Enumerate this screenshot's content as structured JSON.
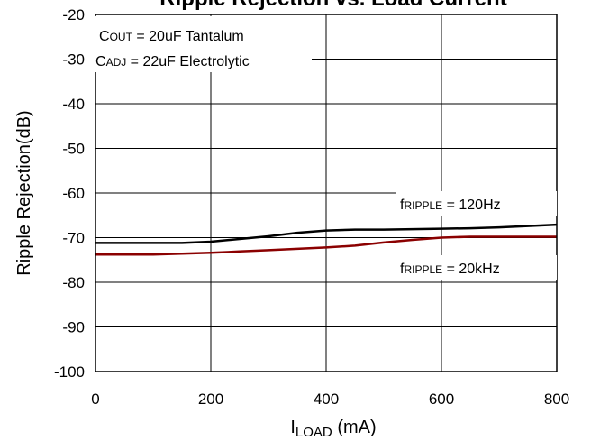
{
  "chart_data": {
    "type": "line",
    "title": "Ripple Rejection vs. Load Current",
    "xlabel": {
      "main": "I",
      "sub": "LOAD",
      "rest": " (mA)"
    },
    "ylabel": "Ripple Rejection(dB)",
    "xlim": [
      0,
      800
    ],
    "ylim": [
      -100,
      -20
    ],
    "x_ticks": [
      0,
      200,
      400,
      600,
      800
    ],
    "y_ticks": [
      -20,
      -30,
      -40,
      -50,
      -60,
      -70,
      -80,
      -90,
      -100
    ],
    "x_tick_labels": [
      "0",
      "200",
      "400",
      "600",
      "800"
    ],
    "y_tick_labels": [
      "-20",
      "-30",
      "-40",
      "-50",
      "-60",
      "-70",
      "-80",
      "-90",
      "-100"
    ],
    "grid": true,
    "conditions": [
      {
        "main": "C",
        "sub": "OUT",
        "rest": " = 20uF Tantalum"
      },
      {
        "main": "C",
        "sub": "ADJ",
        "rest": " = 22uF Electrolytic"
      }
    ],
    "series": [
      {
        "label": {
          "main": "f",
          "sub": "RIPPLE",
          "rest": " = 120Hz"
        },
        "color": "#000000",
        "x": [
          0,
          50,
          100,
          150,
          200,
          250,
          300,
          350,
          400,
          450,
          500,
          550,
          600,
          650,
          700,
          750,
          800
        ],
        "y": [
          -71.2,
          -71.2,
          -71.2,
          -71.2,
          -70.9,
          -70.3,
          -69.7,
          -68.9,
          -68.4,
          -68.2,
          -68.2,
          -68.1,
          -68.0,
          -67.9,
          -67.7,
          -67.4,
          -67.1
        ]
      },
      {
        "label": {
          "main": "f",
          "sub": "RIPPLE",
          "rest": " = 20kHz"
        },
        "color": "#8b0000",
        "x": [
          0,
          50,
          100,
          150,
          200,
          250,
          300,
          350,
          400,
          450,
          500,
          550,
          600,
          650,
          700,
          750,
          800
        ],
        "y": [
          -73.8,
          -73.8,
          -73.8,
          -73.6,
          -73.4,
          -73.1,
          -72.8,
          -72.5,
          -72.2,
          -71.8,
          -71.1,
          -70.5,
          -70.0,
          -69.8,
          -69.8,
          -69.8,
          -69.8
        ]
      }
    ]
  }
}
